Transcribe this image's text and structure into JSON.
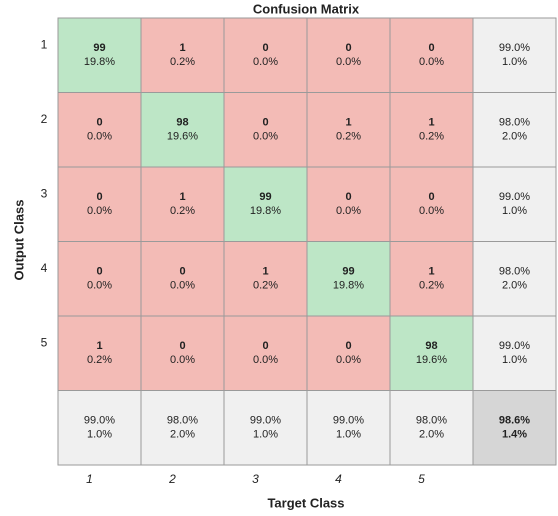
{
  "chart_data": {
    "type": "confusion_matrix",
    "title": "Confusion Matrix",
    "x_label": "Target Class",
    "y_label": "Output Class",
    "classes": [
      "1",
      "2",
      "3",
      "4",
      "5"
    ],
    "counts": [
      [
        99,
        1,
        0,
        0,
        0
      ],
      [
        0,
        98,
        0,
        1,
        1
      ],
      [
        0,
        1,
        99,
        0,
        0
      ],
      [
        0,
        0,
        1,
        99,
        1
      ],
      [
        1,
        0,
        0,
        0,
        98
      ]
    ],
    "percent_labels": [
      [
        "19.8%",
        "0.2%",
        "0.0%",
        "0.0%",
        "0.0%"
      ],
      [
        "0.0%",
        "19.6%",
        "0.0%",
        "0.2%",
        "0.2%"
      ],
      [
        "0.0%",
        "0.2%",
        "19.8%",
        "0.0%",
        "0.0%"
      ],
      [
        "0.0%",
        "0.0%",
        "0.2%",
        "19.8%",
        "0.2%"
      ],
      [
        "0.2%",
        "0.0%",
        "0.0%",
        "0.0%",
        "19.6%"
      ]
    ],
    "row_summary": [
      [
        "99.0%",
        "1.0%"
      ],
      [
        "98.0%",
        "2.0%"
      ],
      [
        "99.0%",
        "1.0%"
      ],
      [
        "98.0%",
        "2.0%"
      ],
      [
        "99.0%",
        "1.0%"
      ]
    ],
    "col_summary": [
      [
        "99.0%",
        "1.0%"
      ],
      [
        "98.0%",
        "2.0%"
      ],
      [
        "99.0%",
        "1.0%"
      ],
      [
        "99.0%",
        "1.0%"
      ],
      [
        "98.0%",
        "2.0%"
      ]
    ],
    "overall": [
      "98.6%",
      "1.4%"
    ],
    "colors": {
      "correct": "#bde6c6",
      "incorrect": "#f3bbb6",
      "summary": "#f0f0f0",
      "overall": "#d6d6d6",
      "correct_text": "#2f9e44",
      "incorrect_text": "#e03131"
    }
  }
}
